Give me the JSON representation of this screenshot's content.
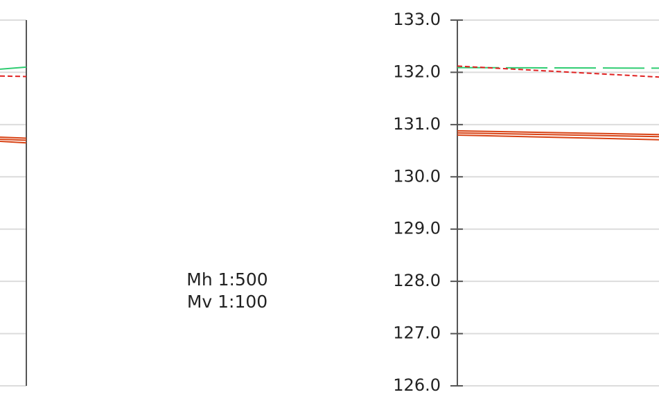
{
  "chart_data": [
    {
      "type": "line",
      "categories": [
        null,
        null
      ],
      "ylim": [
        126,
        133
      ],
      "yticks": [
        126,
        127,
        128,
        129,
        130,
        131,
        132,
        133
      ],
      "grid": true,
      "series": [
        {
          "color": "#2ecc71",
          "dash": "solid",
          "values": [
            132.06,
            132.1
          ]
        },
        {
          "color": "#e02020",
          "dash": "short",
          "values": [
            131.93,
            131.92
          ]
        },
        {
          "color": "#d84315",
          "dash": "solid",
          "values": [
            130.76,
            130.74
          ]
        },
        {
          "color": "#d84315",
          "dash": "solid",
          "values": [
            130.72,
            130.7
          ]
        },
        {
          "color": "#d84315",
          "dash": "solid",
          "values": [
            130.68,
            130.65
          ]
        }
      ]
    },
    {
      "type": "line",
      "categories": [
        null,
        null
      ],
      "ylim": [
        126,
        133
      ],
      "yticks": [
        {
          "value": 126,
          "label": "126.0"
        },
        {
          "value": 127,
          "label": "127.0"
        },
        {
          "value": 128,
          "label": "128.0"
        },
        {
          "value": 129,
          "label": "129.0"
        },
        {
          "value": 130,
          "label": "130.0"
        },
        {
          "value": 131,
          "label": "131.0"
        },
        {
          "value": 132,
          "label": "132.0"
        },
        {
          "value": 133,
          "label": "133.0"
        }
      ],
      "grid": true,
      "annotations": [
        "Mh  1:500",
        "Mv  1:100"
      ],
      "series": [
        {
          "color": "#2ecc71",
          "dash": "long",
          "values": [
            132.09,
            132.08
          ]
        },
        {
          "color": "#e02020",
          "dash": "short",
          "values": [
            132.12,
            131.91
          ]
        },
        {
          "color": "#d84315",
          "dash": "solid",
          "values": [
            130.88,
            130.81
          ]
        },
        {
          "color": "#d84315",
          "dash": "solid",
          "values": [
            130.84,
            130.77
          ]
        },
        {
          "color": "#d84315",
          "dash": "solid",
          "values": [
            130.8,
            130.71
          ]
        }
      ]
    }
  ]
}
